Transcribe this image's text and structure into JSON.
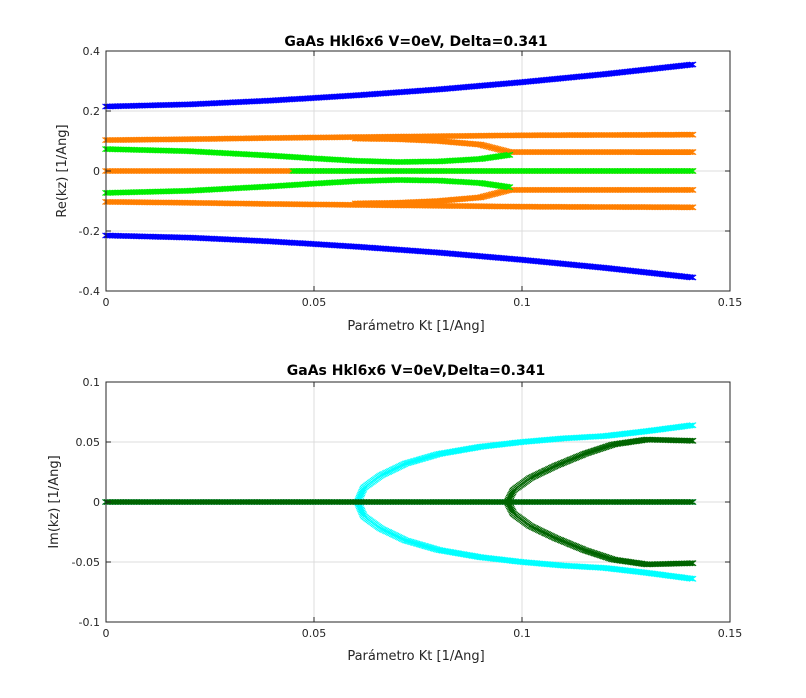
{
  "chart_data": [
    {
      "type": "scatter",
      "title": "GaAs Hkl6x6 V=0eV, Delta=0.341",
      "xlabel": "Parámetro Kt [1/Ang]",
      "ylabel": "Re(kz) [1/Ang]",
      "xlim": [
        0,
        0.15
      ],
      "ylim": [
        -0.4,
        0.4
      ],
      "xticks": [
        0,
        0.05,
        0.1,
        0.15
      ],
      "xtick_labels": [
        "0",
        "0.05",
        "0.1",
        "0.15"
      ],
      "yticks": [
        -0.4,
        -0.2,
        0,
        0.2,
        0.4
      ],
      "ytick_labels": [
        "-0.4",
        "-0.2",
        "0",
        "0.2",
        "0.4"
      ],
      "grid": true,
      "marker": "x",
      "series": [
        {
          "color": "#0000ff",
          "x": [
            0,
            0.02,
            0.04,
            0.06,
            0.08,
            0.1,
            0.12,
            0.141
          ],
          "y": [
            0.215,
            0.222,
            0.235,
            0.252,
            0.272,
            0.296,
            0.323,
            0.355
          ]
        },
        {
          "color": "#0000ff",
          "x": [
            0,
            0.02,
            0.04,
            0.06,
            0.08,
            0.1,
            0.12,
            0.141
          ],
          "y": [
            -0.215,
            -0.222,
            -0.235,
            -0.252,
            -0.272,
            -0.296,
            -0.323,
            -0.355
          ]
        },
        {
          "color": "#ff7f00",
          "x": [
            0,
            0.02,
            0.04,
            0.06,
            0.08,
            0.1,
            0.12,
            0.141
          ],
          "y": [
            0.103,
            0.106,
            0.11,
            0.113,
            0.116,
            0.119,
            0.12,
            0.121
          ]
        },
        {
          "color": "#ff7f00",
          "x": [
            0,
            0.02,
            0.04,
            0.06,
            0.08,
            0.1,
            0.12,
            0.141
          ],
          "y": [
            -0.103,
            -0.106,
            -0.11,
            -0.113,
            -0.116,
            -0.119,
            -0.12,
            -0.121
          ]
        },
        {
          "color": "#ff7f00",
          "x": [
            0.06,
            0.07,
            0.08,
            0.09,
            0.097,
            0.11,
            0.125,
            0.141
          ],
          "y": [
            0.108,
            0.106,
            0.1,
            0.088,
            0.063,
            0.063,
            0.063,
            0.063
          ]
        },
        {
          "color": "#ff7f00",
          "x": [
            0.06,
            0.07,
            0.08,
            0.09,
            0.097,
            0.11,
            0.125,
            0.141
          ],
          "y": [
            -0.108,
            -0.106,
            -0.1,
            -0.088,
            -0.063,
            -0.063,
            -0.063,
            -0.063
          ]
        },
        {
          "color": "#ff7f00",
          "x": [
            0,
            0.02,
            0.04,
            0.06,
            0.08,
            0.1,
            0.12,
            0.141
          ],
          "y": [
            0,
            0,
            0,
            0,
            0,
            0,
            0,
            0
          ]
        },
        {
          "color": "#00ee00",
          "x": [
            0,
            0.02,
            0.04,
            0.05,
            0.06,
            0.07,
            0.08,
            0.09,
            0.097
          ],
          "y": [
            0.073,
            0.066,
            0.051,
            0.042,
            0.034,
            0.03,
            0.032,
            0.04,
            0.054
          ]
        },
        {
          "color": "#00ee00",
          "x": [
            0,
            0.02,
            0.04,
            0.05,
            0.06,
            0.07,
            0.08,
            0.09,
            0.097
          ],
          "y": [
            -0.073,
            -0.066,
            -0.051,
            -0.042,
            -0.034,
            -0.03,
            -0.032,
            -0.04,
            -0.054
          ]
        },
        {
          "color": "#00ee00",
          "x": [
            0.045,
            0.06,
            0.08,
            0.1,
            0.12,
            0.141
          ],
          "y": [
            0,
            0,
            0,
            0,
            0,
            0
          ]
        }
      ]
    },
    {
      "type": "scatter",
      "title": "GaAs Hkl6x6 V=0eV,Delta=0.341",
      "xlabel": "Parámetro Kt [1/Ang]",
      "ylabel": "Im(kz) [1/Ang]",
      "xlim": [
        0,
        0.15
      ],
      "ylim": [
        -0.1,
        0.1
      ],
      "xticks": [
        0,
        0.05,
        0.1,
        0.15
      ],
      "xtick_labels": [
        "0",
        "0.05",
        "0.1",
        "0.15"
      ],
      "yticks": [
        -0.1,
        -0.05,
        0,
        0.05,
        0.1
      ],
      "ytick_labels": [
        "-0.1",
        "-0.05",
        "0",
        "0.05",
        "0.1"
      ],
      "grid": true,
      "marker": "x",
      "series": [
        {
          "color": "#00ffff",
          "x": [
            0,
            0.02,
            0.04,
            0.06,
            0.08,
            0.1,
            0.12,
            0.141
          ],
          "y": [
            0,
            0,
            0,
            0,
            0,
            0,
            0,
            0
          ]
        },
        {
          "color": "#00ffff",
          "x": [
            0.0605,
            0.062,
            0.066,
            0.072,
            0.08,
            0.09,
            0.1,
            0.11,
            0.12,
            0.13,
            0.141
          ],
          "y": [
            0,
            0.012,
            0.022,
            0.032,
            0.04,
            0.046,
            0.05,
            0.053,
            0.055,
            0.059,
            0.064
          ]
        },
        {
          "color": "#00ffff",
          "x": [
            0.0605,
            0.062,
            0.066,
            0.072,
            0.08,
            0.09,
            0.1,
            0.11,
            0.12,
            0.13,
            0.141
          ],
          "y": [
            0,
            -0.012,
            -0.022,
            -0.032,
            -0.04,
            -0.046,
            -0.05,
            -0.053,
            -0.055,
            -0.059,
            -0.064
          ]
        },
        {
          "color": "#006400",
          "x": [
            0,
            0.02,
            0.04,
            0.06,
            0.08,
            0.1,
            0.12,
            0.141
          ],
          "y": [
            0,
            0,
            0,
            0,
            0,
            0,
            0,
            0
          ]
        },
        {
          "color": "#006400",
          "x": [
            0.0965,
            0.098,
            0.102,
            0.108,
            0.115,
            0.122,
            0.13,
            0.141
          ],
          "y": [
            0,
            0.01,
            0.02,
            0.03,
            0.04,
            0.048,
            0.052,
            0.051
          ]
        },
        {
          "color": "#006400",
          "x": [
            0.0965,
            0.098,
            0.102,
            0.108,
            0.115,
            0.122,
            0.13,
            0.141
          ],
          "y": [
            0,
            -0.01,
            -0.02,
            -0.03,
            -0.04,
            -0.048,
            -0.052,
            -0.051
          ]
        }
      ]
    }
  ]
}
